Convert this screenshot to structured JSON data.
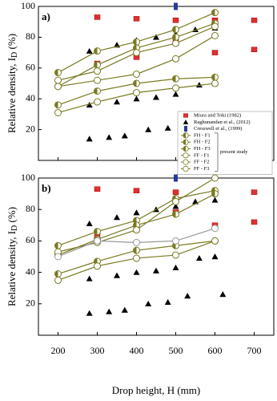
{
  "chart_data": [
    {
      "type": "scatter",
      "panel_label": "a)",
      "y_label": "Relative density, I",
      "y_label_sub": "D",
      "y_label_unit": " (%)",
      "xlim": [
        150,
        750
      ],
      "xticks": [
        200,
        300,
        400,
        500,
        600,
        700
      ],
      "ylim": [
        0,
        100
      ],
      "yticks": [
        20,
        40,
        60,
        80,
        100
      ],
      "legend": "lower right",
      "legend_note": "present study",
      "series": [
        {
          "name": "Miura and Toki (1982)",
          "marker": "square",
          "color": "#e03030",
          "line": false,
          "x": [
            300,
            300,
            400,
            400,
            500,
            500,
            600,
            600,
            700,
            700
          ],
          "values": [
            93,
            63,
            92,
            67,
            91,
            79,
            91,
            70,
            91,
            72
          ]
        },
        {
          "name": "Raghunandan et al., (2012)",
          "marker": "triangle",
          "color": "#000000",
          "line": false,
          "x": [
            280,
            330,
            370,
            430,
            480,
            530,
            620,
            280,
            350,
            400,
            450,
            500,
            550,
            600,
            280,
            350,
            400,
            450,
            500,
            560,
            600
          ],
          "values": [
            14,
            15,
            16,
            20,
            21,
            25,
            26,
            71,
            75,
            78,
            80,
            82,
            85,
            86,
            36,
            38,
            40,
            41,
            43,
            49,
            50
          ]
        },
        {
          "name": "Cresswell et al., (1999)",
          "marker": "bar",
          "color": "#2a3a9a",
          "line": false,
          "x": [
            500
          ],
          "values": [
            100
          ]
        },
        {
          "name": "FH - F1",
          "marker": "half",
          "color": "#7a7a22",
          "line": true,
          "x": [
            200,
            300,
            400,
            500,
            600
          ],
          "values": [
            57,
            71,
            77,
            85,
            96
          ]
        },
        {
          "name": "FH - F2",
          "marker": "half",
          "color": "#7a7a22",
          "line": true,
          "x": [
            200,
            300,
            400,
            500,
            600
          ],
          "values": [
            48,
            62,
            73,
            80,
            89
          ]
        },
        {
          "name": "FH - F3",
          "marker": "half",
          "color": "#7a7a22",
          "line": true,
          "x": [
            200,
            300,
            400,
            500,
            600
          ],
          "values": [
            36,
            45,
            50,
            53,
            54
          ]
        },
        {
          "name": "FF - F1",
          "marker": "open",
          "color": "#7a7a22",
          "line": true,
          "x": [
            200,
            300,
            400,
            500,
            600
          ],
          "values": [
            52,
            58,
            70,
            76,
            87
          ]
        },
        {
          "name": "FF - F2",
          "marker": "open",
          "color": "#7a7a22",
          "line": true,
          "x": [
            200,
            300,
            400,
            500,
            600
          ],
          "values": [
            48,
            52,
            56,
            66,
            81
          ]
        },
        {
          "name": "FF - F3",
          "marker": "open",
          "color": "#7a7a22",
          "line": true,
          "x": [
            200,
            300,
            400,
            500,
            600
          ],
          "values": [
            31,
            38,
            44,
            47,
            50
          ]
        }
      ]
    },
    {
      "type": "scatter",
      "panel_label": "b)",
      "y_label": "Relative density, I",
      "y_label_sub": "D",
      "y_label_unit": " (%)",
      "x_label": "Drop height, H (mm)",
      "xlim": [
        150,
        750
      ],
      "xticks": [
        200,
        300,
        400,
        500,
        600,
        700
      ],
      "ylim": [
        0,
        100
      ],
      "yticks": [
        20,
        40,
        60,
        80,
        100
      ],
      "series": [
        {
          "marker": "square",
          "color": "#e03030",
          "line": false,
          "x": [
            300,
            300,
            400,
            400,
            500,
            500,
            600,
            600,
            700,
            700
          ],
          "values": [
            93,
            63,
            92,
            67,
            91,
            79,
            91,
            70,
            91,
            72
          ]
        },
        {
          "marker": "triangle",
          "color": "#000000",
          "line": false,
          "x": [
            280,
            330,
            370,
            430,
            480,
            530,
            620,
            280,
            350,
            400,
            450,
            500,
            550,
            600,
            280,
            350,
            400,
            450,
            500,
            560,
            600
          ],
          "values": [
            14,
            15,
            16,
            20,
            21,
            25,
            26,
            71,
            75,
            78,
            80,
            82,
            85,
            86,
            36,
            38,
            40,
            41,
            43,
            49,
            50
          ]
        },
        {
          "marker": "bar",
          "color": "#2a3a9a",
          "line": false,
          "x": [
            500
          ],
          "values": [
            100
          ]
        },
        {
          "marker": "half",
          "color": "#7a7a22",
          "line": true,
          "x": [
            200,
            300,
            400,
            500,
            600
          ],
          "values": [
            57,
            66,
            73,
            87,
            92
          ]
        },
        {
          "marker": "half",
          "color": "#7a7a22",
          "line": true,
          "x": [
            200,
            300,
            400,
            500,
            600
          ],
          "values": [
            51,
            61,
            70,
            77,
            90
          ]
        },
        {
          "marker": "half",
          "color": "#7a7a22",
          "line": true,
          "x": [
            200,
            300,
            400,
            500,
            600
          ],
          "values": [
            39,
            47,
            54,
            57,
            60
          ]
        },
        {
          "marker": "open",
          "color": "#7a7a22",
          "line": true,
          "x": [
            200,
            300,
            400,
            500,
            600
          ],
          "values": [
            53,
            59,
            67,
            85,
            100
          ]
        },
        {
          "marker": "open",
          "color": "#999999",
          "line": true,
          "x": [
            200,
            300,
            400,
            500,
            600
          ],
          "values": [
            50,
            60,
            59,
            60,
            68
          ]
        },
        {
          "marker": "open",
          "color": "#7a7a22",
          "line": true,
          "x": [
            200,
            300,
            400,
            500,
            600
          ],
          "values": [
            35,
            44,
            49,
            51,
            60
          ]
        }
      ]
    }
  ]
}
